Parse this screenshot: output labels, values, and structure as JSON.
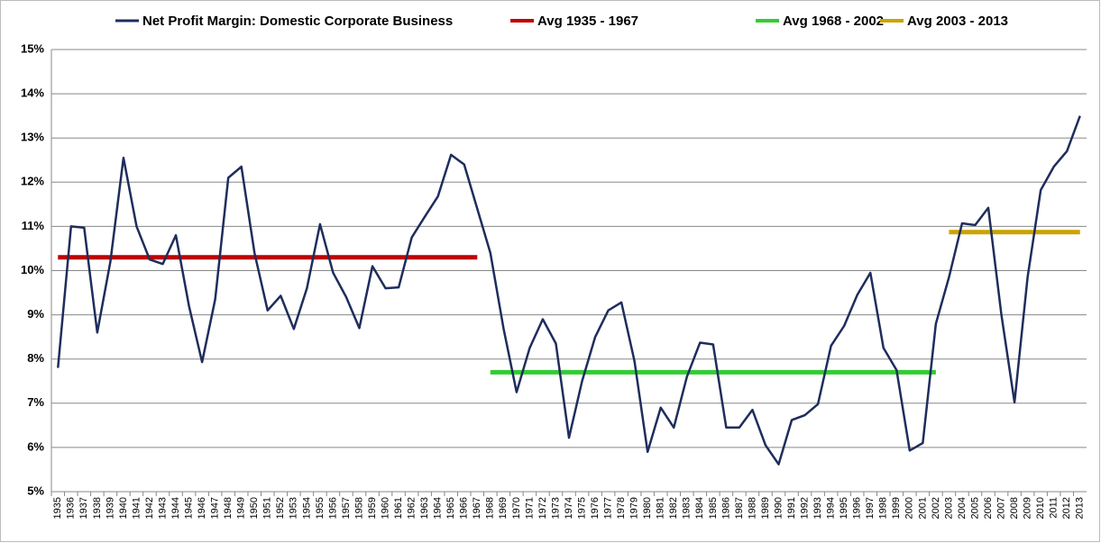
{
  "chart_data": {
    "type": "line",
    "categories": [
      "1935",
      "1936",
      "1937",
      "1938",
      "1939",
      "1940",
      "1941",
      "1942",
      "1943",
      "1944",
      "1945",
      "1946",
      "1947",
      "1948",
      "1949",
      "1950",
      "1951",
      "1952",
      "1953",
      "1954",
      "1955",
      "1956",
      "1957",
      "1958",
      "1959",
      "1960",
      "1961",
      "1962",
      "1963",
      "1964",
      "1965",
      "1966",
      "1967",
      "1968",
      "1969",
      "1970",
      "1971",
      "1972",
      "1973",
      "1974",
      "1975",
      "1976",
      "1977",
      "1978",
      "1979",
      "1980",
      "1981",
      "1982",
      "1983",
      "1984",
      "1985",
      "1986",
      "1987",
      "1988",
      "1989",
      "1990",
      "1991",
      "1992",
      "1993",
      "1994",
      "1995",
      "1996",
      "1997",
      "1998",
      "1999",
      "2000",
      "2001",
      "2002",
      "2003",
      "2004",
      "2005",
      "2006",
      "2007",
      "2008",
      "2009",
      "2010",
      "2011",
      "2012",
      "2013"
    ],
    "series": [
      {
        "name": "Net Profit Margin: Domestic Corporate Business",
        "color": "#1f2d5c",
        "width": 2.5,
        "values": [
          7.8,
          11.0,
          10.97,
          8.6,
          10.2,
          12.55,
          11.0,
          10.25,
          10.15,
          10.8,
          9.2,
          7.93,
          9.35,
          12.1,
          12.35,
          10.4,
          9.1,
          9.43,
          8.68,
          9.6,
          11.05,
          9.95,
          9.4,
          8.7,
          10.1,
          9.6,
          9.62,
          10.75,
          11.22,
          11.68,
          12.62,
          12.4,
          11.4,
          10.4,
          8.7,
          7.25,
          8.25,
          8.9,
          8.35,
          6.22,
          7.5,
          8.5,
          9.1,
          9.28,
          7.95,
          5.9,
          6.9,
          6.45,
          7.6,
          8.37,
          8.33,
          6.45,
          6.45,
          6.85,
          6.05,
          5.62,
          6.62,
          6.73,
          6.98,
          8.3,
          8.75,
          9.45,
          9.95,
          8.25,
          7.75,
          5.93,
          6.1,
          8.8,
          9.85,
          11.07,
          11.03,
          11.42,
          9.0,
          7.02,
          9.85,
          11.82,
          12.35,
          12.7,
          13.5
        ]
      },
      {
        "name": "Avg 1935 - 1967",
        "color": "#c00000",
        "width": 5,
        "values": [
          10.3,
          10.3,
          10.3,
          10.3,
          10.3,
          10.3,
          10.3,
          10.3,
          10.3,
          10.3,
          10.3,
          10.3,
          10.3,
          10.3,
          10.3,
          10.3,
          10.3,
          10.3,
          10.3,
          10.3,
          10.3,
          10.3,
          10.3,
          10.3,
          10.3,
          10.3,
          10.3,
          10.3,
          10.3,
          10.3,
          10.3,
          10.3,
          10.3,
          null,
          null,
          null,
          null,
          null,
          null,
          null,
          null,
          null,
          null,
          null,
          null,
          null,
          null,
          null,
          null,
          null,
          null,
          null,
          null,
          null,
          null,
          null,
          null,
          null,
          null,
          null,
          null,
          null,
          null,
          null,
          null,
          null,
          null,
          null,
          null,
          null,
          null,
          null,
          null,
          null,
          null,
          null,
          null,
          null,
          null
        ]
      },
      {
        "name": "Avg 1968 - 2002",
        "color": "#33cc33",
        "width": 5,
        "values": [
          null,
          null,
          null,
          null,
          null,
          null,
          null,
          null,
          null,
          null,
          null,
          null,
          null,
          null,
          null,
          null,
          null,
          null,
          null,
          null,
          null,
          null,
          null,
          null,
          null,
          null,
          null,
          null,
          null,
          null,
          null,
          null,
          null,
          7.7,
          7.7,
          7.7,
          7.7,
          7.7,
          7.7,
          7.7,
          7.7,
          7.7,
          7.7,
          7.7,
          7.7,
          7.7,
          7.7,
          7.7,
          7.7,
          7.7,
          7.7,
          7.7,
          7.7,
          7.7,
          7.7,
          7.7,
          7.7,
          7.7,
          7.7,
          7.7,
          7.7,
          7.7,
          7.7,
          7.7,
          7.7,
          7.7,
          7.7,
          7.7,
          null,
          null,
          null,
          null,
          null,
          null,
          null,
          null,
          null,
          null,
          null
        ]
      },
      {
        "name": "Avg 2003 - 2013",
        "color": "#c9a400",
        "width": 5,
        "values": [
          null,
          null,
          null,
          null,
          null,
          null,
          null,
          null,
          null,
          null,
          null,
          null,
          null,
          null,
          null,
          null,
          null,
          null,
          null,
          null,
          null,
          null,
          null,
          null,
          null,
          null,
          null,
          null,
          null,
          null,
          null,
          null,
          null,
          null,
          null,
          null,
          null,
          null,
          null,
          null,
          null,
          null,
          null,
          null,
          null,
          null,
          null,
          null,
          null,
          null,
          null,
          null,
          null,
          null,
          null,
          null,
          null,
          null,
          null,
          null,
          null,
          null,
          null,
          null,
          null,
          null,
          null,
          null,
          10.87,
          10.87,
          10.87,
          10.87,
          10.87,
          10.87,
          10.87,
          10.87,
          10.87,
          10.87,
          10.87
        ]
      }
    ],
    "ylim": [
      5,
      15
    ],
    "yticks": [
      {
        "value": 5,
        "label": "5%"
      },
      {
        "value": 6,
        "label": "6%"
      },
      {
        "value": 7,
        "label": "7%"
      },
      {
        "value": 8,
        "label": "8%"
      },
      {
        "value": 9,
        "label": "9%"
      },
      {
        "value": 10,
        "label": "10%"
      },
      {
        "value": 11,
        "label": "11%"
      },
      {
        "value": 12,
        "label": "12%"
      },
      {
        "value": 13,
        "label": "13%"
      },
      {
        "value": 14,
        "label": "14%"
      },
      {
        "value": 15,
        "label": "15%"
      }
    ],
    "grid": true,
    "legend": "top"
  }
}
